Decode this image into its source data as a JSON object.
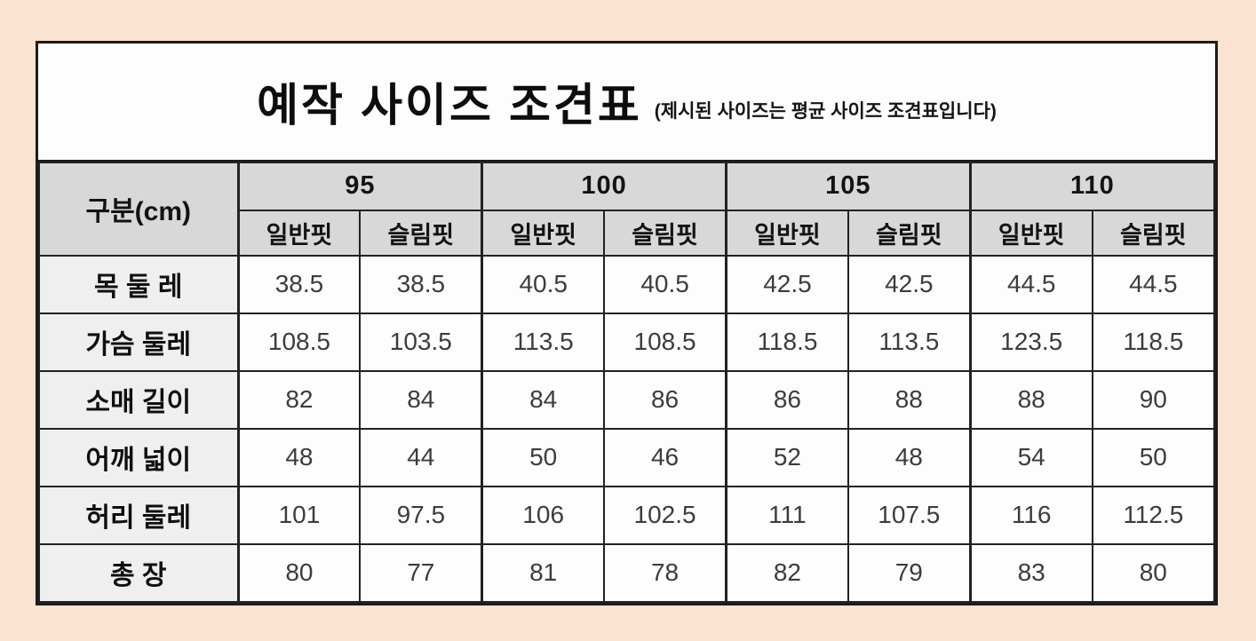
{
  "title": "예작 사이즈 조견표",
  "subtitle": "(제시된 사이즈는 평균 사이즈 조견표입니다)",
  "colors": {
    "page_background": "#fae3d0",
    "table_background": "#fdfdfd",
    "header_background": "#d8d8d8",
    "row_label_background": "#efefef",
    "border": "#222222",
    "value_text": "#3c3c3c"
  },
  "table": {
    "corner_label": "구분(cm)",
    "size_groups": [
      "95",
      "100",
      "105",
      "110"
    ],
    "fit_labels": [
      "일반핏",
      "슬림핏"
    ],
    "rows": [
      {
        "label": "목 둘 레",
        "values": [
          "38.5",
          "38.5",
          "40.5",
          "40.5",
          "42.5",
          "42.5",
          "44.5",
          "44.5"
        ]
      },
      {
        "label": "가슴 둘레",
        "values": [
          "108.5",
          "103.5",
          "113.5",
          "108.5",
          "118.5",
          "113.5",
          "123.5",
          "118.5"
        ]
      },
      {
        "label": "소매 길이",
        "values": [
          "82",
          "84",
          "84",
          "86",
          "86",
          "88",
          "88",
          "90"
        ]
      },
      {
        "label": "어깨 넓이",
        "values": [
          "48",
          "44",
          "50",
          "46",
          "52",
          "48",
          "54",
          "50"
        ]
      },
      {
        "label": "허리 둘레",
        "values": [
          "101",
          "97.5",
          "106",
          "102.5",
          "111",
          "107.5",
          "116",
          "112.5"
        ]
      },
      {
        "label": "총 장",
        "values": [
          "80",
          "77",
          "81",
          "78",
          "82",
          "79",
          "83",
          "80"
        ]
      }
    ]
  },
  "chart_data": {
    "type": "table",
    "title": "예작 사이즈 조견표",
    "subtitle": "(제시된 사이즈는 평균 사이즈 조견표입니다)",
    "unit": "cm",
    "columns": [
      "구분(cm)",
      "95 일반핏",
      "95 슬림핏",
      "100 일반핏",
      "100 슬림핏",
      "105 일반핏",
      "105 슬림핏",
      "110 일반핏",
      "110 슬림핏"
    ],
    "rows": [
      [
        "목 둘 레",
        38.5,
        38.5,
        40.5,
        40.5,
        42.5,
        42.5,
        44.5,
        44.5
      ],
      [
        "가슴 둘레",
        108.5,
        103.5,
        113.5,
        108.5,
        118.5,
        113.5,
        123.5,
        118.5
      ],
      [
        "소매 길이",
        82,
        84,
        84,
        86,
        86,
        88,
        88,
        90
      ],
      [
        "어깨 넓이",
        48,
        44,
        50,
        46,
        52,
        48,
        54,
        50
      ],
      [
        "허리 둘레",
        101,
        97.5,
        106,
        102.5,
        111,
        107.5,
        116,
        112.5
      ],
      [
        "총 장",
        80,
        77,
        81,
        78,
        82,
        79,
        83,
        80
      ]
    ]
  }
}
